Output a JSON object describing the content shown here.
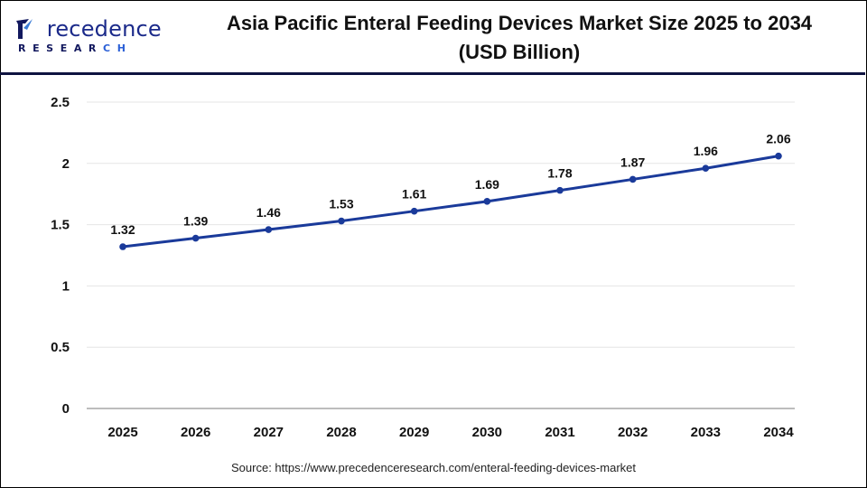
{
  "brand": {
    "logo_word": "recedence",
    "logo_cap": "P",
    "logo_sub_main": "RESEAR",
    "logo_sub_accent": "CH"
  },
  "source_text": "Source: https://www.precedenceresearch.com/enteral-feeding-devices-market",
  "colors": {
    "line": "#1a3a9a",
    "grid": "#e6e6e6",
    "axis": "#bdbdbd",
    "header_rule": "#0f1340"
  },
  "chart_data": {
    "type": "line",
    "title": "Asia Pacific Enteral Feeding Devices Market Size 2025 to 2034",
    "subtitle": "(USD Billion)",
    "xlabel": "",
    "ylabel": "",
    "categories": [
      "2025",
      "2026",
      "2027",
      "2028",
      "2029",
      "2030",
      "2031",
      "2032",
      "2033",
      "2034"
    ],
    "series": [
      {
        "name": "Market Size (USD Billion)",
        "values": [
          1.32,
          1.39,
          1.46,
          1.53,
          1.61,
          1.69,
          1.78,
          1.87,
          1.96,
          2.06
        ],
        "labels": [
          "1.32",
          "1.39",
          "1.46",
          "1.53",
          "1.61",
          "1.69",
          "1.78",
          "1.87",
          "1.96",
          "2.06"
        ]
      }
    ],
    "ylim": [
      0,
      2.5
    ],
    "yticks": [
      0,
      0.5,
      1,
      1.5,
      2,
      2.5
    ],
    "ytick_labels": [
      "0",
      "0.5",
      "1",
      "1.5",
      "2",
      "2.5"
    ],
    "grid": true,
    "legend": "none"
  }
}
